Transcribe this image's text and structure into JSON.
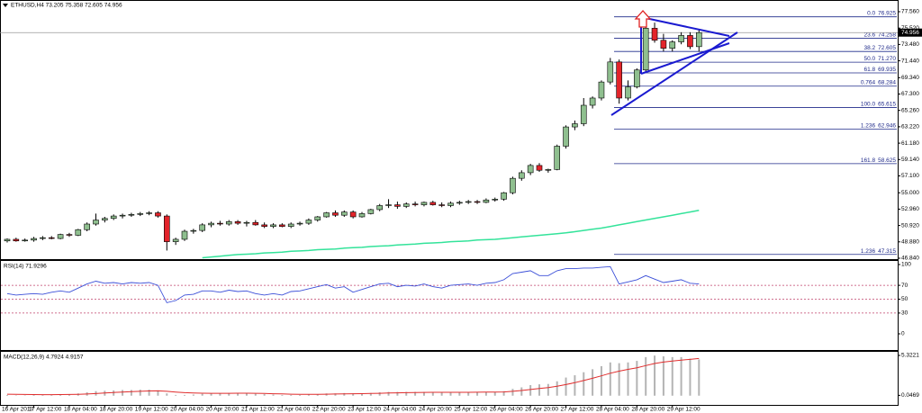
{
  "chart_data": [
    {
      "type": "candlestick",
      "title": "ETHUSD,H4 73.205 75.358 72.605 74.956",
      "categories": [
        "16 Apr 2017",
        null,
        null,
        "17 Apr 12:00",
        null,
        null,
        null,
        "18 Apr 04:00",
        null,
        null,
        null,
        "18 Apr 20:00",
        null,
        null,
        null,
        "19 Apr 12:00",
        null,
        null,
        null,
        "20 Apr 04:00",
        null,
        null,
        null,
        "20 Apr 20:00",
        null,
        null,
        null,
        "21 Apr 12:00",
        null,
        null,
        null,
        "22 Apr 04:00",
        null,
        null,
        null,
        "22 Apr 20:00",
        null,
        null,
        null,
        "23 Apr 12:00",
        null,
        null,
        null,
        "24 Apr 04:00",
        null,
        null,
        null,
        "24 Apr 20:00",
        null,
        null,
        null,
        "25 Apr 12:00",
        null,
        null,
        null,
        "26 Apr 04:00",
        null,
        null,
        null,
        "26 Apr 20:00",
        null,
        null,
        null,
        "27 Apr 12:00",
        null,
        null,
        null,
        "28 Apr 04:00",
        null,
        null,
        null,
        "28 Apr 20:00",
        null,
        null,
        null,
        "29 Apr 12:00",
        null,
        null,
        null
      ],
      "candles": [
        {
          "open": 49.0,
          "high": 49.3,
          "low": 48.8,
          "close": 49.2
        },
        {
          "open": 49.2,
          "high": 49.4,
          "low": 48.9,
          "close": 49.0
        },
        {
          "open": 49.0,
          "high": 49.3,
          "low": 48.9,
          "close": 49.1
        },
        {
          "open": 49.1,
          "high": 49.5,
          "low": 48.9,
          "close": 49.3
        },
        {
          "open": 49.3,
          "high": 49.6,
          "low": 49.1,
          "close": 49.4
        },
        {
          "open": 49.4,
          "high": 49.6,
          "low": 49.2,
          "close": 49.3
        },
        {
          "open": 49.3,
          "high": 49.9,
          "low": 49.2,
          "close": 49.8
        },
        {
          "open": 49.8,
          "high": 50.0,
          "low": 49.5,
          "close": 49.7
        },
        {
          "open": 49.7,
          "high": 50.5,
          "low": 49.6,
          "close": 50.4
        },
        {
          "open": 50.4,
          "high": 51.3,
          "low": 50.2,
          "close": 51.1
        },
        {
          "open": 51.1,
          "high": 52.4,
          "low": 50.9,
          "close": 51.6
        },
        {
          "open": 51.6,
          "high": 52.0,
          "low": 51.3,
          "close": 51.8
        },
        {
          "open": 51.8,
          "high": 52.3,
          "low": 51.6,
          "close": 52.1
        },
        {
          "open": 52.1,
          "high": 52.4,
          "low": 51.8,
          "close": 52.2
        },
        {
          "open": 52.2,
          "high": 52.5,
          "low": 52.0,
          "close": 52.3
        },
        {
          "open": 52.3,
          "high": 52.6,
          "low": 52.1,
          "close": 52.4
        },
        {
          "open": 52.4,
          "high": 52.7,
          "low": 52.2,
          "close": 52.5
        },
        {
          "open": 52.5,
          "high": 52.7,
          "low": 51.9,
          "close": 52.1
        },
        {
          "open": 52.1,
          "high": 52.3,
          "low": 47.8,
          "close": 48.9
        },
        {
          "open": 48.9,
          "high": 49.4,
          "low": 48.5,
          "close": 49.2
        },
        {
          "open": 49.2,
          "high": 50.4,
          "low": 49.0,
          "close": 50.2
        },
        {
          "open": 50.2,
          "high": 50.5,
          "low": 49.9,
          "close": 50.3
        },
        {
          "open": 50.3,
          "high": 51.2,
          "low": 50.1,
          "close": 51.0
        },
        {
          "open": 51.0,
          "high": 51.4,
          "low": 50.7,
          "close": 51.2
        },
        {
          "open": 51.2,
          "high": 51.5,
          "low": 50.9,
          "close": 51.1
        },
        {
          "open": 51.1,
          "high": 51.6,
          "low": 50.9,
          "close": 51.4
        },
        {
          "open": 51.4,
          "high": 51.6,
          "low": 51.0,
          "close": 51.2
        },
        {
          "open": 51.2,
          "high": 51.5,
          "low": 50.8,
          "close": 51.3
        },
        {
          "open": 51.3,
          "high": 51.6,
          "low": 50.9,
          "close": 51.0
        },
        {
          "open": 51.0,
          "high": 51.3,
          "low": 50.6,
          "close": 50.8
        },
        {
          "open": 50.8,
          "high": 51.2,
          "low": 50.6,
          "close": 51.0
        },
        {
          "open": 51.0,
          "high": 51.2,
          "low": 50.7,
          "close": 50.8
        },
        {
          "open": 50.8,
          "high": 51.3,
          "low": 50.6,
          "close": 51.1
        },
        {
          "open": 51.1,
          "high": 51.4,
          "low": 50.9,
          "close": 51.2
        },
        {
          "open": 51.2,
          "high": 51.8,
          "low": 51.0,
          "close": 51.6
        },
        {
          "open": 51.6,
          "high": 52.1,
          "low": 51.4,
          "close": 52.0
        },
        {
          "open": 52.0,
          "high": 52.6,
          "low": 51.9,
          "close": 52.5
        },
        {
          "open": 52.5,
          "high": 52.8,
          "low": 52.0,
          "close": 52.2
        },
        {
          "open": 52.2,
          "high": 52.8,
          "low": 52.0,
          "close": 52.6
        },
        {
          "open": 52.6,
          "high": 52.8,
          "low": 51.8,
          "close": 52.0
        },
        {
          "open": 52.0,
          "high": 52.6,
          "low": 51.9,
          "close": 52.4
        },
        {
          "open": 52.4,
          "high": 53.0,
          "low": 52.3,
          "close": 52.9
        },
        {
          "open": 52.9,
          "high": 53.6,
          "low": 52.7,
          "close": 53.4
        },
        {
          "open": 53.4,
          "high": 54.2,
          "low": 53.1,
          "close": 53.5
        },
        {
          "open": 53.5,
          "high": 53.9,
          "low": 53.0,
          "close": 53.3
        },
        {
          "open": 53.3,
          "high": 53.8,
          "low": 53.1,
          "close": 53.6
        },
        {
          "open": 53.6,
          "high": 53.9,
          "low": 53.3,
          "close": 53.5
        },
        {
          "open": 53.5,
          "high": 53.9,
          "low": 53.3,
          "close": 53.8
        },
        {
          "open": 53.8,
          "high": 54.0,
          "low": 53.4,
          "close": 53.5
        },
        {
          "open": 53.5,
          "high": 53.8,
          "low": 53.2,
          "close": 53.4
        },
        {
          "open": 53.4,
          "high": 53.9,
          "low": 53.2,
          "close": 53.7
        },
        {
          "open": 53.7,
          "high": 54.0,
          "low": 53.5,
          "close": 53.8
        },
        {
          "open": 53.8,
          "high": 54.1,
          "low": 53.6,
          "close": 53.9
        },
        {
          "open": 53.9,
          "high": 54.1,
          "low": 53.6,
          "close": 53.8
        },
        {
          "open": 53.8,
          "high": 54.3,
          "low": 53.7,
          "close": 54.1
        },
        {
          "open": 54.1,
          "high": 54.4,
          "low": 53.9,
          "close": 54.2
        },
        {
          "open": 54.2,
          "high": 55.1,
          "low": 54.0,
          "close": 55.0
        },
        {
          "open": 55.0,
          "high": 57.0,
          "low": 54.8,
          "close": 56.8
        },
        {
          "open": 56.8,
          "high": 57.8,
          "low": 56.5,
          "close": 57.5
        },
        {
          "open": 57.5,
          "high": 58.6,
          "low": 57.2,
          "close": 58.4
        },
        {
          "open": 58.4,
          "high": 58.7,
          "low": 57.6,
          "close": 57.8
        },
        {
          "open": 57.8,
          "high": 58.0,
          "low": 57.5,
          "close": 57.9
        },
        {
          "open": 57.9,
          "high": 61.0,
          "low": 57.8,
          "close": 60.8
        },
        {
          "open": 60.8,
          "high": 63.4,
          "low": 60.5,
          "close": 63.2
        },
        {
          "open": 63.2,
          "high": 64.0,
          "low": 62.8,
          "close": 63.6
        },
        {
          "open": 63.6,
          "high": 66.8,
          "low": 63.3,
          "close": 65.9
        },
        {
          "open": 65.9,
          "high": 67.0,
          "low": 65.5,
          "close": 66.8
        },
        {
          "open": 66.8,
          "high": 69.0,
          "low": 66.5,
          "close": 68.8
        },
        {
          "open": 68.8,
          "high": 71.8,
          "low": 68.5,
          "close": 71.3
        },
        {
          "open": 71.3,
          "high": 71.6,
          "low": 66.1,
          "close": 66.8
        },
        {
          "open": 66.8,
          "high": 69.0,
          "low": 66.5,
          "close": 68.2
        },
        {
          "open": 68.2,
          "high": 70.5,
          "low": 68.0,
          "close": 70.3
        },
        {
          "open": 70.3,
          "high": 76.925,
          "low": 70.1,
          "close": 75.5
        },
        {
          "open": 75.5,
          "high": 76.2,
          "low": 73.7,
          "close": 74.0
        },
        {
          "open": 74.0,
          "high": 74.8,
          "low": 72.6,
          "close": 73.0
        },
        {
          "open": 73.0,
          "high": 74.0,
          "low": 72.6,
          "close": 73.8
        },
        {
          "open": 73.8,
          "high": 75.0,
          "low": 73.5,
          "close": 74.6
        },
        {
          "open": 74.6,
          "high": 75.0,
          "low": 72.9,
          "close": 73.2
        },
        {
          "open": 73.205,
          "high": 75.358,
          "low": 72.605,
          "close": 74.956
        }
      ],
      "up_color": "#8fbf8f",
      "down_color": "#e3242b",
      "ylim": [
        46.84,
        77.56
      ],
      "yticks": [
        {
          "value": 77.56,
          "label": "77.560"
        },
        {
          "value": 75.52,
          "label": "75.520"
        },
        {
          "value": 73.48,
          "label": "73.480"
        },
        {
          "value": 71.44,
          "label": "71.440"
        },
        {
          "value": 69.34,
          "label": "69.340"
        },
        {
          "value": 67.3,
          "label": "67.300"
        },
        {
          "value": 65.26,
          "label": "65.260"
        },
        {
          "value": 63.22,
          "label": "63.220"
        },
        {
          "value": 61.18,
          "label": "61.180"
        },
        {
          "value": 59.14,
          "label": "59.140"
        },
        {
          "value": 57.1,
          "label": "57.100"
        },
        {
          "value": 55.0,
          "label": "55.000"
        },
        {
          "value": 52.96,
          "label": "52.960"
        },
        {
          "value": 50.92,
          "label": "50.920"
        },
        {
          "value": 48.88,
          "label": "48.880"
        },
        {
          "value": 46.84,
          "label": "46.840"
        }
      ],
      "last_price": 74.956,
      "moving_average": {
        "color": "#33e39a",
        "values": [
          null,
          null,
          null,
          null,
          null,
          null,
          null,
          null,
          null,
          null,
          null,
          null,
          null,
          null,
          null,
          null,
          null,
          null,
          null,
          null,
          null,
          null,
          46.9,
          47.0,
          47.1,
          47.2,
          47.3,
          47.35,
          47.4,
          47.5,
          47.55,
          47.6,
          47.7,
          47.75,
          47.8,
          47.9,
          47.95,
          48.0,
          48.1,
          48.15,
          48.2,
          48.3,
          48.35,
          48.4,
          48.5,
          48.55,
          48.6,
          48.7,
          48.75,
          48.8,
          48.9,
          48.95,
          49.0,
          49.1,
          49.15,
          49.2,
          49.3,
          49.4,
          49.5,
          49.6,
          49.7,
          49.8,
          49.9,
          50.0,
          50.15,
          50.3,
          50.45,
          50.6,
          50.8,
          51.0,
          51.2,
          51.4,
          51.6,
          51.8,
          52.0,
          52.2,
          52.4,
          52.6,
          52.8
        ]
      },
      "fib_color": "#1f2a8a",
      "fib_levels": [
        {
          "name": "0.0",
          "value": 76.925
        },
        {
          "name": "23.6",
          "value": 74.258
        },
        {
          "name": "38.2",
          "value": 72.605
        },
        {
          "name": "50.0",
          "value": {
            "value": 71.27,
            "label": "71.270"
          }
        },
        {
          "name": "61.8",
          "value": 69.935
        },
        {
          "name": "0.764",
          "value": 68.284
        },
        {
          "name": "100.0",
          "value": 65.615
        },
        {
          "name": "1.236",
          "value": 62.946
        },
        {
          "name": "161.8",
          "value": 58.625
        },
        {
          "name": "1.236",
          "value": 47.315
        }
      ]
    },
    {
      "type": "line",
      "title": "RSI(14) 71.9296",
      "series": [
        {
          "color": "#3b4fd8",
          "values": [
            58,
            56,
            57,
            58,
            57,
            60,
            62,
            60,
            66,
            72,
            76,
            73,
            74,
            72,
            74,
            73,
            74,
            70,
            45,
            48,
            56,
            57,
            62,
            62,
            60,
            63,
            61,
            62,
            58,
            56,
            58,
            56,
            61,
            62,
            65,
            68,
            71,
            66,
            68,
            60,
            64,
            68,
            72,
            73,
            68,
            70,
            69,
            72,
            68,
            66,
            70,
            71,
            72,
            70,
            73,
            74,
            78,
            87,
            89,
            91,
            84,
            84,
            91,
            94,
            94,
            95,
            95,
            96,
            97,
            72,
            75,
            78,
            84,
            79,
            74,
            76,
            78,
            73,
            71.9296
          ]
        }
      ],
      "ylim": [
        0,
        100
      ],
      "yticks": [
        100,
        70,
        50,
        30,
        0
      ],
      "levels": [
        70,
        50,
        30
      ],
      "level_color": "#c0406a"
    },
    {
      "type": "macd",
      "title": "MACD(12,26,9) 4.7924 4.9157",
      "histogram": {
        "color": "#b4b4b4",
        "values": [
          0.1,
          0.05,
          0.05,
          0.1,
          0.1,
          0.15,
          0.2,
          0.2,
          0.3,
          0.45,
          0.6,
          0.65,
          0.7,
          0.75,
          0.75,
          0.8,
          0.8,
          0.7,
          0.3,
          0.1,
          0.1,
          0.15,
          0.25,
          0.3,
          0.3,
          0.35,
          0.35,
          0.3,
          0.25,
          0.2,
          0.15,
          0.1,
          0.1,
          0.1,
          0.15,
          0.2,
          0.3,
          0.3,
          0.35,
          0.3,
          0.3,
          0.35,
          0.45,
          0.5,
          0.5,
          0.5,
          0.5,
          0.5,
          0.5,
          0.45,
          0.45,
          0.45,
          0.45,
          0.5,
          0.5,
          0.5,
          0.6,
          0.9,
          1.1,
          1.4,
          1.5,
          1.55,
          1.9,
          2.4,
          2.7,
          3.1,
          3.5,
          3.9,
          4.4,
          4.3,
          4.4,
          4.6,
          5.1,
          5.3,
          5.2,
          5.1,
          5.1,
          4.9,
          4.7924
        ]
      },
      "signal": {
        "color": "#e02c2c",
        "values": [
          0.2,
          0.18,
          0.16,
          0.15,
          0.14,
          0.14,
          0.15,
          0.16,
          0.18,
          0.22,
          0.28,
          0.35,
          0.42,
          0.48,
          0.53,
          0.58,
          0.62,
          0.64,
          0.58,
          0.48,
          0.4,
          0.35,
          0.33,
          0.32,
          0.32,
          0.32,
          0.33,
          0.33,
          0.31,
          0.29,
          0.26,
          0.23,
          0.2,
          0.18,
          0.17,
          0.18,
          0.2,
          0.22,
          0.25,
          0.26,
          0.27,
          0.29,
          0.32,
          0.35,
          0.38,
          0.4,
          0.42,
          0.44,
          0.45,
          0.45,
          0.45,
          0.45,
          0.45,
          0.46,
          0.47,
          0.48,
          0.5,
          0.58,
          0.68,
          0.82,
          0.95,
          1.07,
          1.24,
          1.47,
          1.72,
          2.0,
          2.3,
          2.62,
          2.97,
          3.24,
          3.48,
          3.7,
          3.98,
          4.25,
          4.44,
          4.58,
          4.7,
          4.8,
          4.9157
        ]
      },
      "ylim": [
        -1.1,
        5.8
      ],
      "yticks": [
        5.3221,
        0.0469
      ]
    }
  ]
}
